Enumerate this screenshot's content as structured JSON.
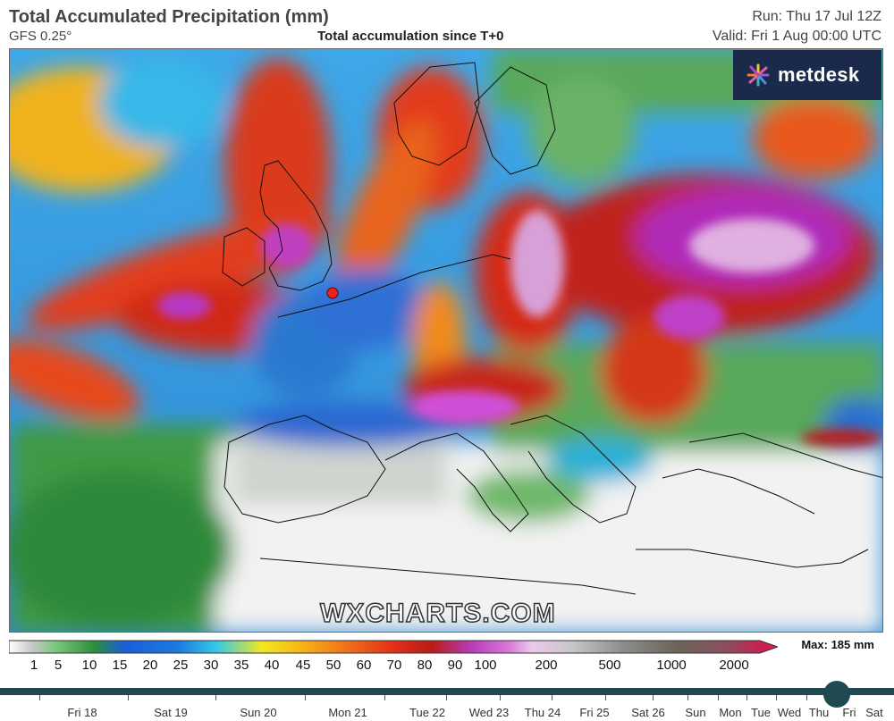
{
  "header": {
    "title": "Total Accumulated Precipitation (mm)",
    "model": "GFS 0.25°",
    "subtitle": "Total accumulation since T+0",
    "run": "Run: Thu 17 Jul 12Z",
    "valid": "Valid: Fri 1 Aug 00:00 UTC"
  },
  "logo": {
    "text": "metdesk",
    "icon": "metdesk-burst-icon"
  },
  "watermark": "WXCHARTS.COM",
  "legend": {
    "ticks": [
      "1",
      "5",
      "10",
      "15",
      "20",
      "25",
      "30",
      "35",
      "40",
      "45",
      "50",
      "60",
      "70",
      "80",
      "90",
      "100",
      "200",
      "500",
      "1000",
      "2000"
    ],
    "max_label": "Max: 185 mm"
  },
  "timeline": {
    "days": [
      "Fri 18",
      "Sat 19",
      "Sun 20",
      "Mon 21",
      "Tue 22",
      "Wed 23",
      "Thu 24",
      "Fri 25",
      "Sat 26",
      "Sun",
      "Mon",
      "Tue",
      "Wed",
      "Thu",
      "Fri",
      "Sat"
    ]
  },
  "colors": {
    "timeline_track": "#1f4a52",
    "logo_bg": "#1b2a4a",
    "marker": "#e8231e"
  }
}
